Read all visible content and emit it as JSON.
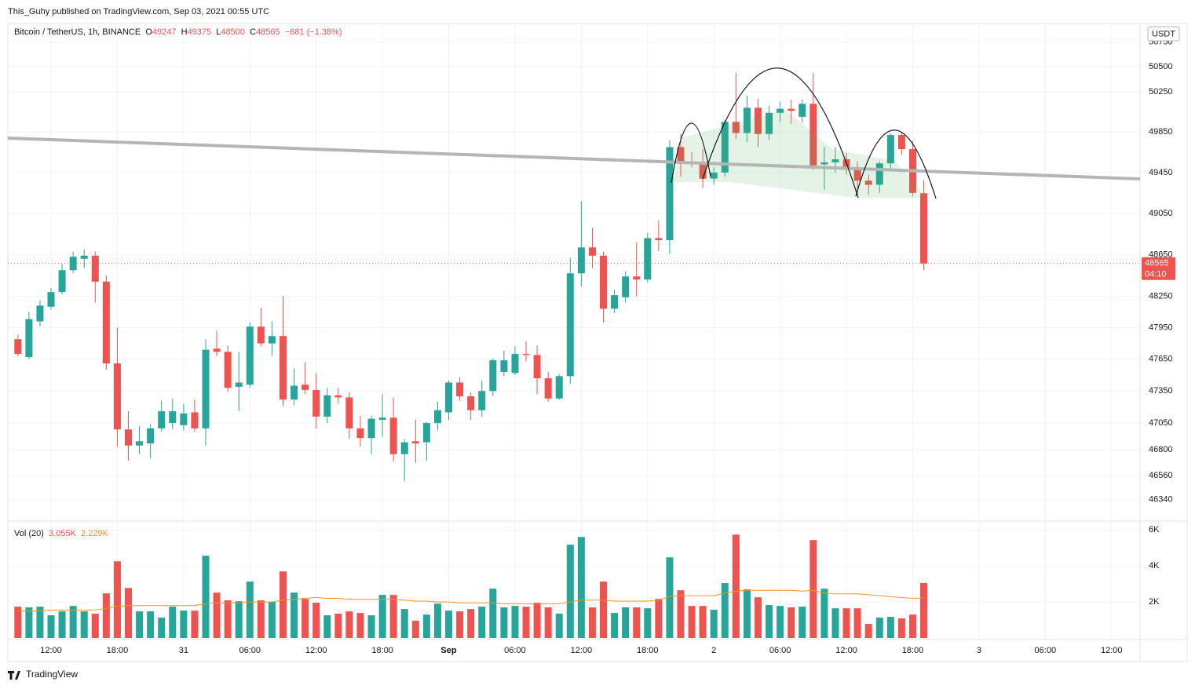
{
  "page": {
    "publisher_line": "This_Guhy published on TradingView.com, Sep 03, 2021 00:55 UTC",
    "brand": "TradingView",
    "currency": "USDT",
    "countdown": "04:10"
  },
  "chart_data": {
    "type": "candlestick",
    "title": "Bitcoin / TetherUS, 1h, BINANCE",
    "ohlc_prefixes": [
      "O",
      "H",
      "L",
      "C"
    ],
    "change": "−681 (−1.38%)",
    "price_scale": "log",
    "grid": true,
    "up_color": "#26a69a",
    "down_color": "#ef5350",
    "ma_color": "#f7931a",
    "categories": [
      null,
      null,
      null,
      "12:00",
      null,
      null,
      null,
      null,
      null,
      "18:00",
      null,
      null,
      null,
      null,
      null,
      "31",
      null,
      null,
      null,
      null,
      null,
      "06:00",
      null,
      null,
      null,
      null,
      null,
      "12:00",
      null,
      null,
      null,
      null,
      null,
      "18:00",
      null,
      null,
      null,
      null,
      null,
      "Sep",
      null,
      null,
      null,
      null,
      null,
      "06:00",
      null,
      null,
      null,
      null,
      null,
      "12:00",
      null,
      null,
      null,
      null,
      null,
      "18:00",
      null,
      null,
      null,
      null,
      null,
      "2",
      null,
      null,
      null,
      null,
      null,
      "06:00",
      null,
      null,
      null,
      null,
      null,
      "12:00",
      null,
      null,
      null,
      null,
      null,
      "18:00",
      null,
      null,
      null,
      null,
      null,
      "3",
      null,
      null,
      null,
      null,
      null,
      "06:00",
      null,
      null,
      null,
      null,
      null,
      "12:00",
      null,
      null
    ],
    "open": [
      47840,
      47670,
      48010,
      48150,
      48290,
      48500,
      48610,
      48640,
      48390,
      47610,
      46990,
      46840,
      46860,
      47000,
      47050,
      47030,
      47150,
      47000,
      47750,
      47720,
      47390,
      47410,
      47960,
      47800,
      47870,
      47270,
      47410,
      47360,
      47110,
      47310,
      47290,
      47000,
      46910,
      47080,
      47100,
      46760,
      46880,
      46870,
      47050,
      47150,
      47430,
      47300,
      47170,
      47350,
      47530,
      47520,
      47700,
      47690,
      47470,
      47280,
      47490,
      48470,
      48720,
      48640,
      48130,
      48240,
      48440,
      48410,
      48810,
      48790,
      49700,
      49560,
      49550,
      49390,
      49450,
      49950,
      49840,
      50090,
      49830,
      50040,
      50080,
      50000,
      50130,
      49530,
      49550,
      49580,
      49500,
      49370,
      49330,
      49540,
      49820,
      49680,
      49247,
      null,
      null,
      null,
      null,
      null,
      null,
      null,
      null,
      null,
      null,
      null,
      null,
      null,
      null,
      null,
      null,
      null,
      null,
      null
    ],
    "high": [
      47880,
      48100,
      48210,
      48330,
      48560,
      48680,
      48700,
      48680,
      48450,
      47950,
      47160,
      47020,
      47040,
      47260,
      47280,
      47230,
      47270,
      47840,
      47920,
      47780,
      47720,
      48000,
      48140,
      48010,
      48250,
      47560,
      47620,
      47520,
      47380,
      47380,
      47340,
      47120,
      47120,
      47320,
      47290,
      46900,
      47080,
      47060,
      47250,
      47450,
      47480,
      47340,
      47450,
      47660,
      47730,
      47770,
      47820,
      47780,
      47530,
      47510,
      48620,
      49170,
      48910,
      48680,
      48310,
      48490,
      48770,
      48860,
      48980,
      49770,
      49830,
      49650,
      49680,
      49500,
      49970,
      50440,
      50210,
      50180,
      50110,
      50150,
      50170,
      50170,
      50440,
      49700,
      49700,
      49640,
      49560,
      49430,
      49560,
      49840,
      49850,
      49760,
      49375,
      null,
      null,
      null,
      null,
      null,
      null,
      null,
      null,
      null,
      null,
      null,
      null,
      null,
      null,
      null,
      null,
      null,
      null,
      null
    ],
    "low": [
      47680,
      47650,
      47960,
      48120,
      48270,
      48470,
      48520,
      48190,
      47550,
      46830,
      46700,
      46760,
      46720,
      46970,
      46990,
      46980,
      46970,
      46840,
      47680,
      47340,
      47160,
      47380,
      47770,
      47680,
      47210,
      47220,
      47320,
      47000,
      47050,
      47230,
      46900,
      46830,
      46760,
      46920,
      46690,
      46510,
      46680,
      46700,
      46980,
      47080,
      47260,
      47080,
      47110,
      47300,
      47490,
      47500,
      47630,
      47320,
      47250,
      47270,
      47420,
      48340,
      48520,
      48000,
      48090,
      48190,
      48250,
      48380,
      48680,
      48660,
      49410,
      49500,
      49300,
      49330,
      49410,
      49780,
      49750,
      49700,
      49770,
      49950,
      49930,
      49940,
      49480,
      49280,
      49450,
      49430,
      49230,
      49230,
      49250,
      49490,
      49620,
      49220,
      48500,
      null,
      null,
      null,
      null,
      null,
      null,
      null,
      null,
      null,
      null,
      null,
      null,
      null,
      null,
      null,
      null,
      null,
      null,
      null
    ],
    "close": [
      47700,
      48030,
      48160,
      48290,
      48500,
      48630,
      48640,
      48390,
      47610,
      46990,
      46840,
      46880,
      47000,
      47160,
      47160,
      47140,
      47000,
      47740,
      47720,
      47380,
      47430,
      47960,
      47800,
      47870,
      47270,
      47400,
      47360,
      47110,
      47310,
      47290,
      47000,
      46910,
      47090,
      47100,
      46760,
      46870,
      46860,
      47050,
      47170,
      47430,
      47300,
      47170,
      47350,
      47640,
      47640,
      47700,
      47690,
      47470,
      47280,
      47490,
      48470,
      48720,
      48640,
      48130,
      48260,
      48440,
      48410,
      48810,
      48790,
      49700,
      49560,
      49550,
      49390,
      49450,
      49950,
      49840,
      50090,
      49830,
      50040,
      50080,
      50060,
      50130,
      49520,
      49550,
      49580,
      49500,
      49370,
      49330,
      49540,
      49820,
      49680,
      49250,
      48565,
      null,
      null,
      null,
      null,
      null,
      null,
      null,
      null,
      null,
      null,
      null,
      null,
      null,
      null,
      null,
      null,
      null,
      null,
      null
    ],
    "ylim": [
      46150,
      50935
    ],
    "yticks": [
      46340,
      46560,
      46800,
      47050,
      47350,
      47650,
      47950,
      48250,
      48650,
      49050,
      49450,
      49850,
      50250,
      50500,
      50750
    ],
    "volume_legend": {
      "title": "Vol (20)",
      "volume_label": "3.055K",
      "ma_label": "2.229K"
    },
    "volume": [
      1740,
      1700,
      1740,
      1260,
      1480,
      1780,
      1480,
      1350,
      2480,
      4260,
      2780,
      1480,
      1480,
      1130,
      1740,
      1520,
      1520,
      4570,
      2520,
      2090,
      2040,
      3130,
      2090,
      2000,
      3700,
      2520,
      2170,
      1960,
      1260,
      1350,
      1480,
      1390,
      1260,
      2390,
      2390,
      1610,
      960,
      1300,
      1910,
      1520,
      1480,
      1610,
      1740,
      2740,
      1700,
      1780,
      1740,
      1960,
      1700,
      1350,
      5180,
      5610,
      1700,
      3130,
      1390,
      1700,
      1700,
      1650,
      2170,
      4480,
      2650,
      1780,
      1780,
      1570,
      3050,
      5740,
      2700,
      2260,
      1830,
      1780,
      1700,
      1740,
      5440,
      2740,
      1650,
      1650,
      1650,
      780,
      1130,
      1170,
      1090,
      1300,
      3055,
      null,
      null,
      null,
      null,
      null,
      null,
      null,
      null,
      null,
      null,
      null,
      null,
      null,
      null,
      null,
      null,
      null,
      null,
      null
    ],
    "volume_ma": [
      1500,
      1500,
      1500,
      1550,
      1550,
      1550,
      1550,
      1560,
      1650,
      1750,
      1800,
      1800,
      1800,
      1800,
      1800,
      1800,
      1800,
      1900,
      1950,
      1950,
      1950,
      2000,
      2000,
      2000,
      2100,
      2150,
      2200,
      2250,
      2200,
      2200,
      2150,
      2150,
      2150,
      2150,
      2150,
      2100,
      2050,
      2050,
      2000,
      2000,
      1950,
      1950,
      1950,
      1950,
      1900,
      1900,
      1900,
      1900,
      1900,
      1900,
      2000,
      2100,
      2100,
      2100,
      2050,
      2050,
      2050,
      2050,
      2100,
      2300,
      2350,
      2350,
      2350,
      2350,
      2500,
      2600,
      2650,
      2650,
      2650,
      2650,
      2650,
      2600,
      2650,
      2500,
      2450,
      2450,
      2450,
      2400,
      2350,
      2300,
      2250,
      2200,
      2229,
      null,
      null,
      null,
      null,
      null,
      null,
      null,
      null,
      null,
      null,
      null,
      null,
      null,
      null,
      null,
      null,
      null,
      null,
      null
    ],
    "vlim": [
      0,
      6450
    ],
    "vticks": [
      {
        "value": 2000,
        "label": "2K"
      },
      {
        "value": 4000,
        "label": "4K"
      },
      {
        "value": 6000,
        "label": "6K"
      }
    ]
  }
}
